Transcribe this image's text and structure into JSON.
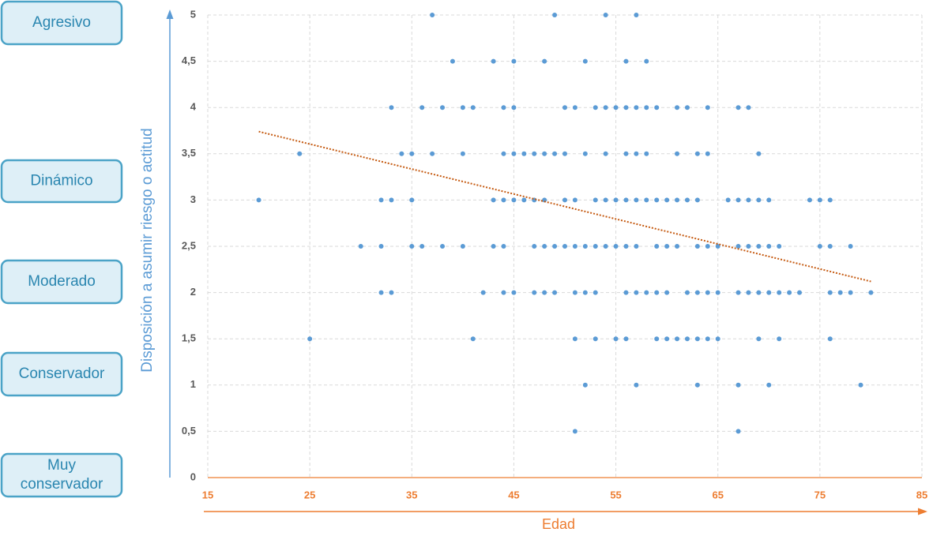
{
  "chart_data": {
    "type": "scatter",
    "ylabel": "Disposición a asumir riesgo o actitud",
    "xlabel": "Edad",
    "side_labels": [
      "Agresivo",
      "Dinámico",
      "Moderado",
      "Conservador",
      "Muy conservador"
    ],
    "color": "#5b9bd5",
    "x": [
      37,
      49,
      54,
      57,
      39,
      43,
      45,
      48,
      52,
      56,
      58,
      33,
      36,
      38,
      40,
      41,
      44,
      45,
      50,
      51,
      53,
      54,
      55,
      56,
      57,
      58,
      59,
      61,
      62,
      64,
      67,
      68,
      24,
      34,
      35,
      37,
      40,
      44,
      45,
      46,
      47,
      48,
      49,
      50,
      52,
      54,
      56,
      57,
      58,
      61,
      63,
      64,
      69,
      20,
      32,
      33,
      35,
      43,
      44,
      45,
      46,
      47,
      48,
      50,
      51,
      53,
      54,
      55,
      56,
      57,
      58,
      59,
      60,
      61,
      62,
      63,
      66,
      67,
      68,
      69,
      70,
      74,
      75,
      76,
      30,
      32,
      35,
      36,
      38,
      40,
      43,
      44,
      47,
      48,
      49,
      50,
      51,
      52,
      53,
      54,
      55,
      56,
      57,
      59,
      60,
      61,
      63,
      64,
      65,
      67,
      68,
      69,
      70,
      71,
      75,
      76,
      78,
      32,
      33,
      42,
      44,
      45,
      47,
      48,
      49,
      51,
      52,
      53,
      56,
      57,
      58,
      59,
      60,
      62,
      63,
      64,
      65,
      67,
      68,
      69,
      70,
      71,
      72,
      73,
      76,
      77,
      78,
      80,
      25,
      41,
      51,
      53,
      55,
      56,
      59,
      60,
      61,
      62,
      63,
      64,
      65,
      69,
      71,
      76,
      52,
      57,
      63,
      67,
      70,
      79,
      51,
      67
    ],
    "values": [
      5,
      5,
      5,
      5,
      4.5,
      4.5,
      4.5,
      4.5,
      4.5,
      4.5,
      4.5,
      4,
      4,
      4,
      4,
      4,
      4,
      4,
      4,
      4,
      4,
      4,
      4,
      4,
      4,
      4,
      4,
      4,
      4,
      4,
      4,
      4,
      3.5,
      3.5,
      3.5,
      3.5,
      3.5,
      3.5,
      3.5,
      3.5,
      3.5,
      3.5,
      3.5,
      3.5,
      3.5,
      3.5,
      3.5,
      3.5,
      3.5,
      3.5,
      3.5,
      3.5,
      3.5,
      3,
      3,
      3,
      3,
      3,
      3,
      3,
      3,
      3,
      3,
      3,
      3,
      3,
      3,
      3,
      3,
      3,
      3,
      3,
      3,
      3,
      3,
      3,
      3,
      3,
      3,
      3,
      3,
      3,
      3,
      3,
      2.5,
      2.5,
      2.5,
      2.5,
      2.5,
      2.5,
      2.5,
      2.5,
      2.5,
      2.5,
      2.5,
      2.5,
      2.5,
      2.5,
      2.5,
      2.5,
      2.5,
      2.5,
      2.5,
      2.5,
      2.5,
      2.5,
      2.5,
      2.5,
      2.5,
      2.5,
      2.5,
      2.5,
      2.5,
      2.5,
      2.5,
      2.5,
      2.5,
      2,
      2,
      2,
      2,
      2,
      2,
      2,
      2,
      2,
      2,
      2,
      2,
      2,
      2,
      2,
      2,
      2,
      2,
      2,
      2,
      2,
      2,
      2,
      2,
      2,
      2,
      2,
      2,
      2,
      2,
      2,
      1.5,
      1.5,
      1.5,
      1.5,
      1.5,
      1.5,
      1.5,
      1.5,
      1.5,
      1.5,
      1.5,
      1.5,
      1.5,
      1.5,
      1.5,
      1.5,
      1,
      1,
      1,
      1,
      1,
      1,
      0.5,
      0.5
    ],
    "trendline": {
      "x": [
        20,
        80
      ],
      "values": [
        3.74,
        2.12
      ],
      "color": "#c55a11"
    },
    "xlim": [
      15,
      85
    ],
    "xticks": [
      15,
      25,
      35,
      45,
      55,
      65,
      75,
      85
    ],
    "ylim": [
      0,
      5
    ],
    "yticks": [
      0,
      {
        "value": 0.5,
        "label": "0,5"
      },
      1,
      {
        "value": 1.5,
        "label": "1,5"
      },
      2,
      {
        "value": 2.5,
        "label": "2,5"
      },
      3,
      {
        "value": 3.5,
        "label": "3,5"
      },
      4,
      {
        "value": 4.5,
        "label": "4,5"
      },
      5
    ],
    "grid": true
  }
}
